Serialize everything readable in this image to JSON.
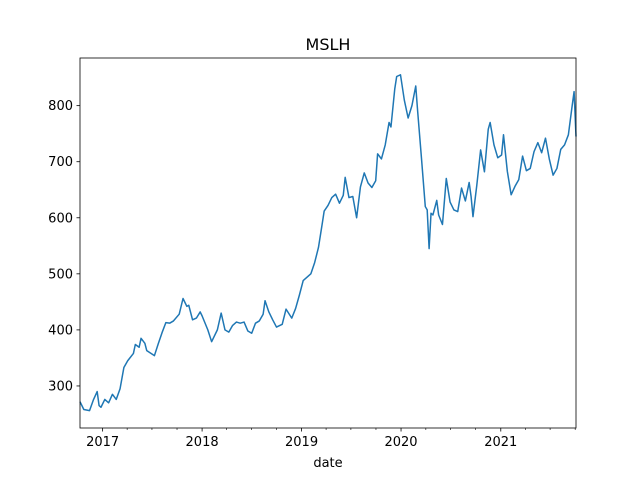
{
  "chart_data": {
    "type": "line",
    "title": "MSLH",
    "xlabel": "date",
    "ylabel": "",
    "xlim": [
      "2016-10-10",
      "2021-10-04"
    ],
    "ylim": [
      225,
      885
    ],
    "grid": false,
    "legend": "none",
    "color": "#1f77b4",
    "x_ticks": [
      {
        "date": "2017-01-01",
        "label": "2017"
      },
      {
        "date": "2018-01-01",
        "label": "2018"
      },
      {
        "date": "2019-01-01",
        "label": "2019"
      },
      {
        "date": "2020-01-01",
        "label": "2020"
      },
      {
        "date": "2021-01-01",
        "label": "2021"
      }
    ],
    "y_ticks": [
      300,
      400,
      500,
      600,
      700,
      800
    ],
    "series": [
      {
        "values": [
          [
            "2016-10-10",
            272
          ],
          [
            "2016-10-24",
            258
          ],
          [
            "2016-11-14",
            256
          ],
          [
            "2016-11-28",
            275
          ],
          [
            "2016-12-12",
            290
          ],
          [
            "2016-12-19",
            265
          ],
          [
            "2016-12-26",
            262
          ],
          [
            "2017-01-09",
            276
          ],
          [
            "2017-01-23",
            270
          ],
          [
            "2017-02-06",
            285
          ],
          [
            "2017-02-20",
            276
          ],
          [
            "2017-03-06",
            295
          ],
          [
            "2017-03-20",
            333
          ],
          [
            "2017-04-03",
            345
          ],
          [
            "2017-04-24",
            358
          ],
          [
            "2017-05-01",
            374
          ],
          [
            "2017-05-15",
            369
          ],
          [
            "2017-05-22",
            385
          ],
          [
            "2017-06-05",
            376
          ],
          [
            "2017-06-12",
            363
          ],
          [
            "2017-07-10",
            354
          ],
          [
            "2017-07-24",
            375
          ],
          [
            "2017-08-07",
            395
          ],
          [
            "2017-08-21",
            413
          ],
          [
            "2017-09-04",
            412
          ],
          [
            "2017-09-18",
            416
          ],
          [
            "2017-10-09",
            428
          ],
          [
            "2017-10-23",
            456
          ],
          [
            "2017-11-06",
            442
          ],
          [
            "2017-11-13",
            444
          ],
          [
            "2017-11-27",
            418
          ],
          [
            "2017-12-11",
            421
          ],
          [
            "2017-12-25",
            432
          ],
          [
            "2018-01-01",
            425
          ],
          [
            "2018-01-22",
            400
          ],
          [
            "2018-02-05",
            379
          ],
          [
            "2018-02-26",
            400
          ],
          [
            "2018-03-12",
            430
          ],
          [
            "2018-03-26",
            400
          ],
          [
            "2018-04-09",
            396
          ],
          [
            "2018-04-23",
            408
          ],
          [
            "2018-05-07",
            414
          ],
          [
            "2018-05-21",
            412
          ],
          [
            "2018-06-04",
            414
          ],
          [
            "2018-06-18",
            398
          ],
          [
            "2018-07-02",
            394
          ],
          [
            "2018-07-16",
            412
          ],
          [
            "2018-07-30",
            416
          ],
          [
            "2018-08-13",
            428
          ],
          [
            "2018-08-20",
            452
          ],
          [
            "2018-09-03",
            432
          ],
          [
            "2018-09-17",
            418
          ],
          [
            "2018-10-01",
            405
          ],
          [
            "2018-10-22",
            410
          ],
          [
            "2018-11-05",
            437
          ],
          [
            "2018-11-26",
            421
          ],
          [
            "2018-12-10",
            438
          ],
          [
            "2018-12-24",
            462
          ],
          [
            "2019-01-07",
            488
          ],
          [
            "2019-01-21",
            494
          ],
          [
            "2019-02-04",
            500
          ],
          [
            "2019-02-18",
            520
          ],
          [
            "2019-03-04",
            547
          ],
          [
            "2019-03-18",
            590
          ],
          [
            "2019-03-25",
            612
          ],
          [
            "2019-04-08",
            622
          ],
          [
            "2019-04-22",
            636
          ],
          [
            "2019-05-06",
            642
          ],
          [
            "2019-05-20",
            626
          ],
          [
            "2019-06-03",
            640
          ],
          [
            "2019-06-10",
            672
          ],
          [
            "2019-06-24",
            636
          ],
          [
            "2019-07-08",
            638
          ],
          [
            "2019-07-22",
            600
          ],
          [
            "2019-08-05",
            655
          ],
          [
            "2019-08-19",
            680
          ],
          [
            "2019-09-02",
            662
          ],
          [
            "2019-09-16",
            654
          ],
          [
            "2019-09-30",
            666
          ],
          [
            "2019-10-07",
            714
          ],
          [
            "2019-10-21",
            705
          ],
          [
            "2019-11-04",
            730
          ],
          [
            "2019-11-18",
            770
          ],
          [
            "2019-11-25",
            762
          ],
          [
            "2019-12-09",
            830
          ],
          [
            "2019-12-16",
            852
          ],
          [
            "2019-12-30",
            855
          ],
          [
            "2020-01-13",
            810
          ],
          [
            "2020-01-27",
            778
          ],
          [
            "2020-02-10",
            800
          ],
          [
            "2020-02-24",
            835
          ],
          [
            "2020-03-02",
            790
          ],
          [
            "2020-03-16",
            706
          ],
          [
            "2020-03-30",
            620
          ],
          [
            "2020-04-06",
            614
          ],
          [
            "2020-04-13",
            545
          ],
          [
            "2020-04-20",
            608
          ],
          [
            "2020-04-27",
            605
          ],
          [
            "2020-05-11",
            631
          ],
          [
            "2020-05-18",
            605
          ],
          [
            "2020-06-01",
            588
          ],
          [
            "2020-06-15",
            670
          ],
          [
            "2020-06-29",
            628
          ],
          [
            "2020-07-13",
            614
          ],
          [
            "2020-07-27",
            611
          ],
          [
            "2020-08-10",
            653
          ],
          [
            "2020-08-24",
            630
          ],
          [
            "2020-09-07",
            663
          ],
          [
            "2020-09-14",
            638
          ],
          [
            "2020-09-21",
            602
          ],
          [
            "2020-10-05",
            658
          ],
          [
            "2020-10-19",
            721
          ],
          [
            "2020-11-02",
            682
          ],
          [
            "2020-11-16",
            758
          ],
          [
            "2020-11-23",
            770
          ],
          [
            "2020-12-07",
            730
          ],
          [
            "2020-12-21",
            707
          ],
          [
            "2021-01-04",
            712
          ],
          [
            "2021-01-11",
            748
          ],
          [
            "2021-01-25",
            683
          ],
          [
            "2021-02-08",
            641
          ],
          [
            "2021-02-22",
            656
          ],
          [
            "2021-03-08",
            668
          ],
          [
            "2021-03-22",
            710
          ],
          [
            "2021-04-05",
            684
          ],
          [
            "2021-04-19",
            688
          ],
          [
            "2021-05-03",
            718
          ],
          [
            "2021-05-17",
            734
          ],
          [
            "2021-05-31",
            716
          ],
          [
            "2021-06-14",
            742
          ],
          [
            "2021-06-28",
            705
          ],
          [
            "2021-07-12",
            676
          ],
          [
            "2021-07-26",
            688
          ],
          [
            "2021-08-09",
            722
          ],
          [
            "2021-08-23",
            730
          ],
          [
            "2021-09-06",
            748
          ],
          [
            "2021-09-20",
            800
          ],
          [
            "2021-09-27",
            825
          ],
          [
            "2021-10-04",
            745
          ]
        ]
      }
    ]
  }
}
